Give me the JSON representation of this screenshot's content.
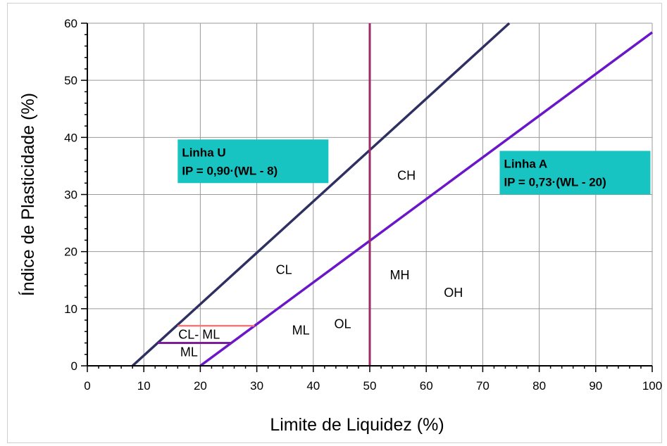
{
  "chart_data": {
    "type": "line",
    "title": "",
    "xlabel": "Limite de Liquidez (%)",
    "ylabel": "Índice de Plasticidade (%)",
    "xlim": [
      0,
      100
    ],
    "ylim": [
      0,
      60
    ],
    "x_ticks": [
      "0",
      "10",
      "20",
      "30",
      "40",
      "50",
      "60",
      "70",
      "80",
      "90",
      "100"
    ],
    "y_ticks": [
      "0",
      "10",
      "20",
      "30",
      "40",
      "50",
      "60"
    ],
    "grid": true,
    "colors": {
      "u_line": "#2f2f62",
      "a_line": "#6a16c9",
      "vertical_line": "#9c2a6a",
      "cl_ml_upper": "#f07878",
      "cl_ml_lower": "#7a1f9a",
      "label_box": "#17c4c2",
      "grid": "#999999"
    },
    "series": [
      {
        "key": "u",
        "x": [
          8,
          74.7
        ],
        "y": [
          0,
          60
        ]
      },
      {
        "key": "a",
        "x": [
          20,
          100
        ],
        "y": [
          0,
          58.4
        ]
      },
      {
        "key": "v",
        "x": [
          50,
          50
        ],
        "y": [
          0,
          60
        ]
      },
      {
        "key": "cl_ml_upper",
        "x": [
          16,
          29.6
        ],
        "y": [
          7,
          7
        ]
      },
      {
        "key": "cl_ml_lower",
        "x": [
          12.5,
          25.5
        ],
        "y": [
          4,
          4
        ]
      }
    ],
    "annotations": {
      "linha_u": {
        "title": "Linha U",
        "equation": "IP = 0,90·(WL -  8)",
        "x": 16,
        "y": 32
      },
      "linha_a": {
        "title": "Linha A",
        "equation": "IP = 0,73·(WL -  20)",
        "x": 73,
        "y": 30
      }
    },
    "zones": [
      {
        "label": "CH",
        "x": 56.5,
        "y": 33.3
      },
      {
        "label": "CL",
        "x": 34.8,
        "y": 16.8
      },
      {
        "label": "MH",
        "x": 55.3,
        "y": 15.9
      },
      {
        "label": "OH",
        "x": 64.8,
        "y": 12.8
      },
      {
        "label": "ML",
        "x": 37.8,
        "y": 6.2
      },
      {
        "label": "OL",
        "x": 45.2,
        "y": 7.3
      },
      {
        "label": "CL- ML",
        "x": 19.8,
        "y": 5.5
      },
      {
        "label": "ML",
        "x": 18,
        "y": 2.4
      }
    ]
  }
}
